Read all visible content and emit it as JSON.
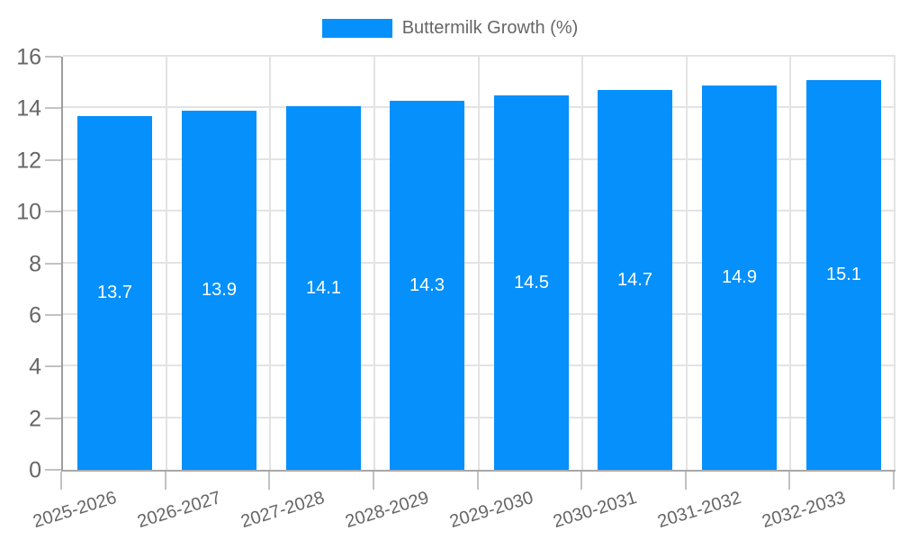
{
  "legend": {
    "label": "Buttermilk Growth (%)",
    "swatch_color": "#0590fb"
  },
  "chart_data": {
    "type": "bar",
    "title": "",
    "categories": [
      "2025-2026",
      "2026-2027",
      "2027-2028",
      "2028-2029",
      "2029-2030",
      "2030-2031",
      "2031-2032",
      "2032-2033"
    ],
    "series": [
      {
        "name": "Buttermilk Growth (%)",
        "values": [
          13.7,
          13.9,
          14.1,
          14.3,
          14.5,
          14.7,
          14.9,
          15.1
        ]
      }
    ],
    "value_labels": [
      "13.7",
      "13.9",
      "14.1",
      "14.3",
      "14.5",
      "14.7",
      "14.9",
      "15.1"
    ],
    "xlabel": "",
    "ylabel": "",
    "ylim": [
      0,
      16
    ],
    "yticks": [
      0,
      2,
      4,
      6,
      8,
      10,
      12,
      14,
      16
    ],
    "grid": true,
    "legend_position": "top",
    "bar_color": "#0590fb",
    "value_label_color": "#ffffff",
    "axis_text_color": "#666666"
  }
}
